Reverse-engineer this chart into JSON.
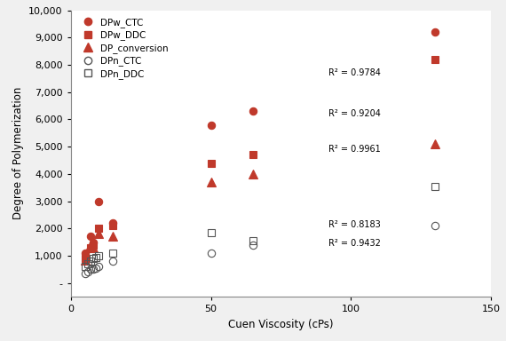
{
  "title": "",
  "xlabel": "Cuen Viscosity (cPs)",
  "ylabel": "Degree of Polymerization",
  "xlim": [
    0,
    150
  ],
  "ylim": [
    -500,
    10000
  ],
  "yticks": [
    0,
    1000,
    2000,
    3000,
    4000,
    5000,
    6000,
    7000,
    8000,
    9000,
    10000
  ],
  "xticks": [
    0,
    50,
    100,
    150
  ],
  "series": {
    "DPw_CTC": {
      "x": [
        5,
        7,
        8,
        10,
        15,
        50,
        65,
        130
      ],
      "y": [
        1100,
        1700,
        1500,
        3000,
        2200,
        5800,
        6300,
        9200
      ],
      "marker": "o",
      "filled": true,
      "r2": 0.9784,
      "r2_x": 92,
      "r2_y": 7700
    },
    "DPw_DDC": {
      "x": [
        5,
        7,
        8,
        10,
        15,
        50,
        65,
        130
      ],
      "y": [
        900,
        1300,
        1400,
        2000,
        2100,
        4400,
        4700,
        8200
      ],
      "marker": "s",
      "filled": true,
      "r2": 0.9204,
      "r2_x": 92,
      "r2_y": 6200
    },
    "DP_conversion": {
      "x": [
        5,
        7,
        8,
        10,
        15,
        50,
        65,
        130
      ],
      "y": [
        850,
        1400,
        1300,
        1800,
        1700,
        3700,
        4000,
        5100
      ],
      "marker": "^",
      "filled": true,
      "r2": 0.9961,
      "r2_x": 92,
      "r2_y": 4900
    },
    "DPn_CTC": {
      "x": [
        5,
        6,
        7,
        8,
        9,
        10,
        15,
        50,
        65,
        130
      ],
      "y": [
        350,
        400,
        500,
        500,
        550,
        600,
        800,
        1100,
        1400,
        2100
      ],
      "marker": "o",
      "filled": false,
      "r2": 0.8183,
      "r2_x": 92,
      "r2_y": 2150
    },
    "DPn_DDC": {
      "x": [
        5,
        6,
        7,
        8,
        9,
        10,
        15,
        50,
        65,
        130
      ],
      "y": [
        600,
        700,
        800,
        900,
        950,
        1000,
        1100,
        1850,
        1550,
        3550
      ],
      "marker": "s",
      "filled": false,
      "r2": 0.9432,
      "r2_x": 92,
      "r2_y": 1450
    }
  },
  "filled_color": "#C0392B",
  "empty_color": "#555555",
  "background_color": "#f0f0f0",
  "plot_bg": "#ffffff",
  "fig_w": 5.7,
  "fig_h": 3.84,
  "dpi": 100
}
